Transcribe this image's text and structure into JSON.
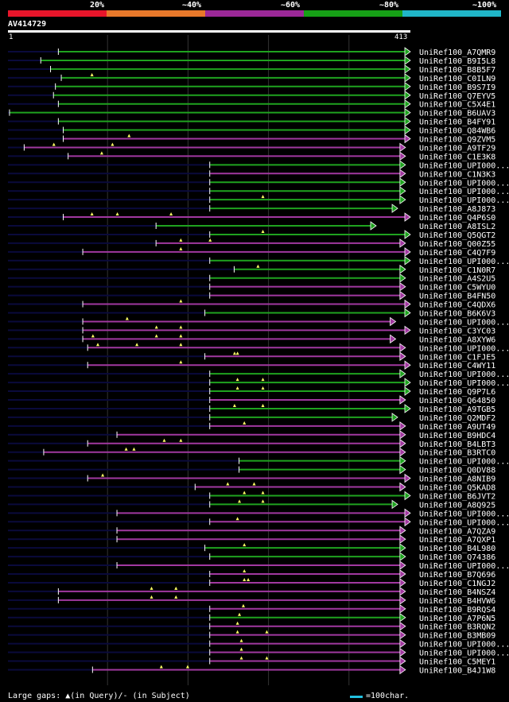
{
  "legend": {
    "segments": [
      {
        "label": "20%",
        "color": "#e8152a"
      },
      {
        "label": "~40%",
        "color": "#e8782a"
      },
      {
        "label": "~60%",
        "color": "#9c2898"
      },
      {
        "label": "~80%",
        "color": "#16a016"
      },
      {
        "label": "~100%",
        "color": "#20b6c8"
      }
    ]
  },
  "query": {
    "id": "AV414729",
    "start_label": "1",
    "end_label": "413",
    "length": 413
  },
  "colors": {
    "green": "#1fa31f",
    "purple": "#a138a0",
    "dark": "#0a0a3c",
    "grid": "#333333"
  },
  "footer": {
    "text": "Large gaps: ▲(in Query)/- (in Subject)",
    "scale_text": "=100char."
  },
  "chart_data": {
    "type": "alignment-map",
    "query_length": 413,
    "hits": [
      {
        "name": "UniRef100_A7QMR9",
        "start": 53,
        "end": 413,
        "color": "green",
        "gaps": []
      },
      {
        "name": "UniRef100_B9I5L8",
        "start": 35,
        "end": 413,
        "color": "green",
        "gaps": []
      },
      {
        "name": "UniRef100_B8B5F7",
        "start": 45,
        "end": 413,
        "color": "green",
        "gaps": []
      },
      {
        "name": "UniRef100_C0ILN9",
        "start": 56,
        "end": 413,
        "color": "green",
        "gaps": [
          87
        ]
      },
      {
        "name": "UniRef100_B9S7I9",
        "start": 50,
        "end": 413,
        "color": "green",
        "gaps": []
      },
      {
        "name": "UniRef100_Q7EYV5",
        "start": 48,
        "end": 413,
        "color": "green",
        "gaps": []
      },
      {
        "name": "UniRef100_C5X4E1",
        "start": 53,
        "end": 413,
        "color": "green",
        "gaps": []
      },
      {
        "name": "UniRef100_B6UAV3",
        "start": 3,
        "end": 413,
        "color": "green",
        "gaps": []
      },
      {
        "name": "UniRef100_B4FY91",
        "start": 53,
        "end": 413,
        "color": "green",
        "gaps": []
      },
      {
        "name": "UniRef100_Q84WB6",
        "start": 58,
        "end": 413,
        "color": "green",
        "gaps": []
      },
      {
        "name": "UniRef100_Q9ZVM5",
        "start": 58,
        "end": 413,
        "color": "purple",
        "gaps": [
          125
        ]
      },
      {
        "name": "UniRef100_A9TF29",
        "start": 18,
        "end": 408,
        "color": "purple",
        "gaps": [
          48,
          108
        ]
      },
      {
        "name": "UniRef100_C1E3K8",
        "start": 63,
        "end": 408,
        "color": "purple",
        "gaps": [
          97
        ]
      },
      {
        "name": "UniRef100_UPI000...",
        "start": 208,
        "end": 408,
        "color": "green",
        "gaps": []
      },
      {
        "name": "UniRef100_C1N3K3",
        "start": 208,
        "end": 408,
        "color": "purple",
        "gaps": []
      },
      {
        "name": "UniRef100_UPI000...",
        "start": 208,
        "end": 408,
        "color": "green",
        "gaps": []
      },
      {
        "name": "UniRef100_UPI000...",
        "start": 208,
        "end": 408,
        "color": "green",
        "gaps": []
      },
      {
        "name": "UniRef100_UPI000...",
        "start": 208,
        "end": 408,
        "color": "green",
        "gaps": [
          262
        ]
      },
      {
        "name": "UniRef100_A8J873",
        "start": 208,
        "end": 400,
        "color": "green",
        "gaps": []
      },
      {
        "name": "UniRef100_Q4P6S0",
        "start": 58,
        "end": 413,
        "color": "purple",
        "gaps": [
          87,
          113,
          168
        ]
      },
      {
        "name": "UniRef100_A8ISL2",
        "start": 153,
        "end": 378,
        "color": "green",
        "gaps": []
      },
      {
        "name": "UniRef100_Q5QGT2",
        "start": 208,
        "end": 413,
        "color": "green",
        "gaps": [
          262
        ]
      },
      {
        "name": "UniRef100_Q00Z55",
        "start": 153,
        "end": 408,
        "color": "purple",
        "gaps": [
          178,
          208
        ]
      },
      {
        "name": "UniRef100_C4Q7F9",
        "start": 78,
        "end": 413,
        "color": "purple",
        "gaps": [
          178
        ]
      },
      {
        "name": "UniRef100_UPI000...",
        "start": 208,
        "end": 413,
        "color": "green",
        "gaps": []
      },
      {
        "name": "UniRef100_C1N0R7",
        "start": 233,
        "end": 408,
        "color": "green",
        "gaps": [
          257
        ]
      },
      {
        "name": "UniRef100_A4S2U5",
        "start": 208,
        "end": 408,
        "color": "green",
        "gaps": []
      },
      {
        "name": "UniRef100_C5WYU0",
        "start": 208,
        "end": 408,
        "color": "purple",
        "gaps": []
      },
      {
        "name": "UniRef100_B4FN50",
        "start": 208,
        "end": 408,
        "color": "purple",
        "gaps": []
      },
      {
        "name": "UniRef100_C4QDX6",
        "start": 78,
        "end": 413,
        "color": "purple",
        "gaps": [
          178
        ]
      },
      {
        "name": "UniRef100_B6K6V3",
        "start": 203,
        "end": 413,
        "color": "green",
        "gaps": []
      },
      {
        "name": "UniRef100_UPI000...",
        "start": 78,
        "end": 398,
        "color": "purple",
        "gaps": [
          123
        ]
      },
      {
        "name": "UniRef100_C3YC03",
        "start": 78,
        "end": 413,
        "color": "purple",
        "gaps": [
          153,
          178
        ]
      },
      {
        "name": "UniRef100_A8XYW6",
        "start": 78,
        "end": 398,
        "color": "purple",
        "gaps": [
          88,
          153,
          178
        ]
      },
      {
        "name": "UniRef100_UPI000...",
        "start": 83,
        "end": 408,
        "color": "purple",
        "gaps": [
          93,
          133,
          178
        ]
      },
      {
        "name": "UniRef100_C1FJE5",
        "start": 203,
        "end": 408,
        "color": "purple",
        "gaps": [
          233,
          236
        ]
      },
      {
        "name": "UniRef100_C4WY11",
        "start": 83,
        "end": 413,
        "color": "purple",
        "gaps": [
          178
        ]
      },
      {
        "name": "UniRef100_UPI000...",
        "start": 208,
        "end": 408,
        "color": "green",
        "gaps": []
      },
      {
        "name": "UniRef100_UPI000...",
        "start": 208,
        "end": 413,
        "color": "green",
        "gaps": [
          236,
          262
        ]
      },
      {
        "name": "UniRef100_Q9P7L6",
        "start": 208,
        "end": 413,
        "color": "green",
        "gaps": [
          236,
          262
        ]
      },
      {
        "name": "UniRef100_Q64850",
        "start": 208,
        "end": 408,
        "color": "purple",
        "gaps": []
      },
      {
        "name": "UniRef100_A9TGB5",
        "start": 208,
        "end": 413,
        "color": "green",
        "gaps": [
          233,
          262
        ]
      },
      {
        "name": "UniRef100_Q2MDF2",
        "start": 208,
        "end": 400,
        "color": "green",
        "gaps": []
      },
      {
        "name": "UniRef100_A9UT49",
        "start": 208,
        "end": 408,
        "color": "purple",
        "gaps": [
          243
        ]
      },
      {
        "name": "UniRef100_B9HDC4",
        "start": 113,
        "end": 408,
        "color": "purple",
        "gaps": []
      },
      {
        "name": "UniRef100_B4LBT3",
        "start": 83,
        "end": 408,
        "color": "purple",
        "gaps": [
          161,
          178
        ]
      },
      {
        "name": "UniRef100_B3RTC0",
        "start": 38,
        "end": 408,
        "color": "purple",
        "gaps": [
          122,
          130
        ]
      },
      {
        "name": "UniRef100_UPI000...",
        "start": 238,
        "end": 408,
        "color": "green",
        "gaps": []
      },
      {
        "name": "UniRef100_Q0DV88",
        "start": 238,
        "end": 408,
        "color": "green",
        "gaps": []
      },
      {
        "name": "UniRef100_A8NIB9",
        "start": 83,
        "end": 413,
        "color": "purple",
        "gaps": [
          98
        ]
      },
      {
        "name": "UniRef100_Q5KAD8",
        "start": 193,
        "end": 408,
        "color": "purple",
        "gaps": [
          226,
          253
        ]
      },
      {
        "name": "UniRef100_B6JVT2",
        "start": 208,
        "end": 413,
        "color": "green",
        "gaps": [
          243,
          262
        ]
      },
      {
        "name": "UniRef100_A8Q925",
        "start": 208,
        "end": 400,
        "color": "green",
        "gaps": [
          238,
          262
        ]
      },
      {
        "name": "UniRef100_UPI000...",
        "start": 113,
        "end": 413,
        "color": "purple",
        "gaps": []
      },
      {
        "name": "UniRef100_UPI000...",
        "start": 208,
        "end": 413,
        "color": "purple",
        "gaps": [
          236
        ]
      },
      {
        "name": "UniRef100_A7QZA9",
        "start": 113,
        "end": 408,
        "color": "purple",
        "gaps": []
      },
      {
        "name": "UniRef100_A7QXP1",
        "start": 113,
        "end": 408,
        "color": "purple",
        "gaps": []
      },
      {
        "name": "UniRef100_B4L980",
        "start": 203,
        "end": 408,
        "color": "green",
        "gaps": [
          243
        ]
      },
      {
        "name": "UniRef100_Q74386",
        "start": 208,
        "end": 408,
        "color": "green",
        "gaps": []
      },
      {
        "name": "UniRef100_UPI000...",
        "start": 113,
        "end": 408,
        "color": "purple",
        "gaps": []
      },
      {
        "name": "UniRef100_B7Q696",
        "start": 208,
        "end": 408,
        "color": "purple",
        "gaps": [
          243
        ]
      },
      {
        "name": "UniRef100_C1NGJ2",
        "start": 208,
        "end": 408,
        "color": "purple",
        "gaps": [
          243,
          247
        ]
      },
      {
        "name": "UniRef100_B4NSZ4",
        "start": 53,
        "end": 408,
        "color": "purple",
        "gaps": [
          148,
          173
        ]
      },
      {
        "name": "UniRef100_B4HVW6",
        "start": 53,
        "end": 408,
        "color": "purple",
        "gaps": [
          148,
          173
        ]
      },
      {
        "name": "UniRef100_B9RQS4",
        "start": 208,
        "end": 408,
        "color": "purple",
        "gaps": [
          242
        ]
      },
      {
        "name": "UniRef100_A7P6N5",
        "start": 208,
        "end": 408,
        "color": "green",
        "gaps": [
          238
        ]
      },
      {
        "name": "UniRef100_B3RQN2",
        "start": 208,
        "end": 408,
        "color": "purple",
        "gaps": [
          236
        ]
      },
      {
        "name": "UniRef100_B3MB09",
        "start": 208,
        "end": 408,
        "color": "purple",
        "gaps": [
          236,
          266
        ]
      },
      {
        "name": "UniRef100_UPI000...",
        "start": 208,
        "end": 408,
        "color": "purple",
        "gaps": [
          240
        ]
      },
      {
        "name": "UniRef100_UPI000...",
        "start": 208,
        "end": 408,
        "color": "purple",
        "gaps": [
          240
        ]
      },
      {
        "name": "UniRef100_C5MEY1",
        "start": 208,
        "end": 408,
        "color": "purple",
        "gaps": [
          240,
          266
        ]
      },
      {
        "name": "UniRef100_B4J1W8",
        "start": 88,
        "end": 408,
        "color": "purple",
        "gaps": [
          158,
          185
        ]
      }
    ]
  }
}
